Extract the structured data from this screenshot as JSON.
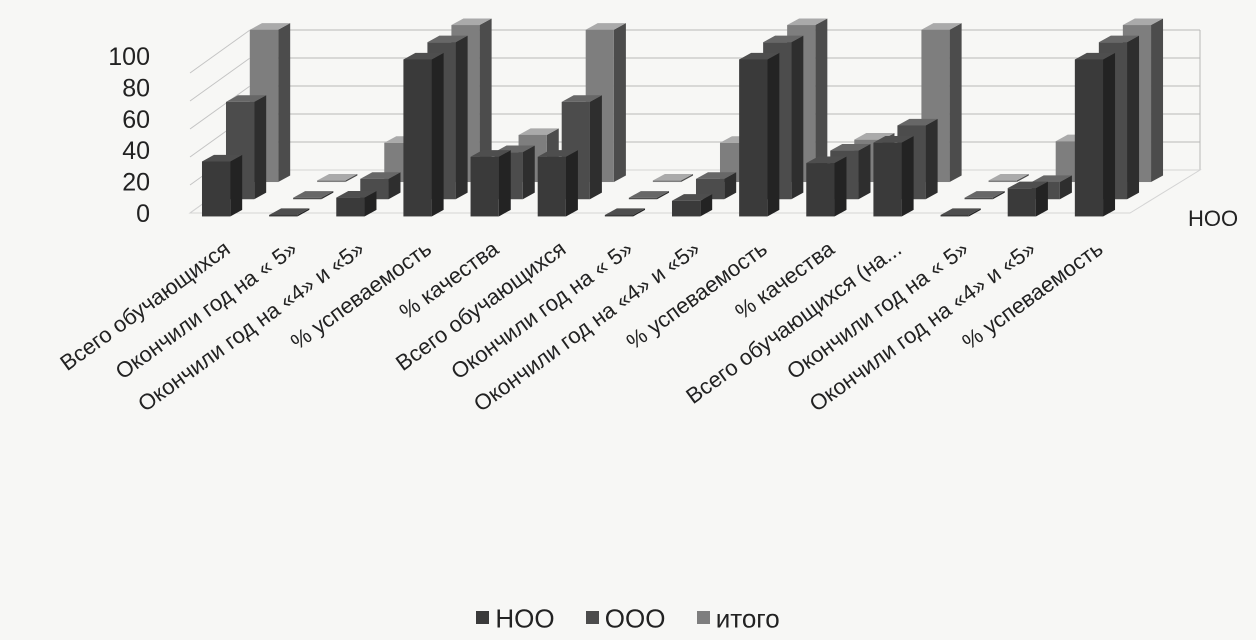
{
  "chart_data": {
    "type": "bar",
    "title": "",
    "xlabel": "",
    "ylabel": "",
    "ylim": [
      0,
      100
    ],
    "yticks": [
      0,
      20,
      40,
      60,
      80,
      100
    ],
    "grid": true,
    "legend_position": "bottom",
    "depth_axis_label": "НОО",
    "categories": [
      "Всего обучающихся",
      "Окончили год на  « 5»",
      "Окончили год на  «4» и  «5»",
      "% успеваемость",
      "% качества",
      "Всего обучающихся",
      "Окончили год на  « 5»",
      "Окончили год на  «4» и  «5»",
      "% успеваемость",
      "% качества",
      "Всего обучающихся (на...",
      "Окончили год на  « 5»",
      "Окончили год на  «4» и  «5»",
      "% успеваемость"
    ],
    "series": [
      {
        "name": "НОО",
        "color": "#3a3a3a",
        "values": [
          35,
          0,
          12,
          100,
          38,
          38,
          0,
          10,
          100,
          34,
          47,
          0,
          18,
          100
        ]
      },
      {
        "name": "ООО",
        "color": "#4c4c4c",
        "values": [
          62,
          0,
          13,
          100,
          30,
          62,
          0,
          13,
          100,
          31,
          47,
          0,
          11,
          100
        ]
      },
      {
        "name": "итого",
        "color": "#7e7e7e",
        "values": [
          97,
          0,
          25,
          100,
          30,
          97,
          0,
          25,
          100,
          27,
          97,
          0,
          26,
          100
        ]
      }
    ]
  }
}
